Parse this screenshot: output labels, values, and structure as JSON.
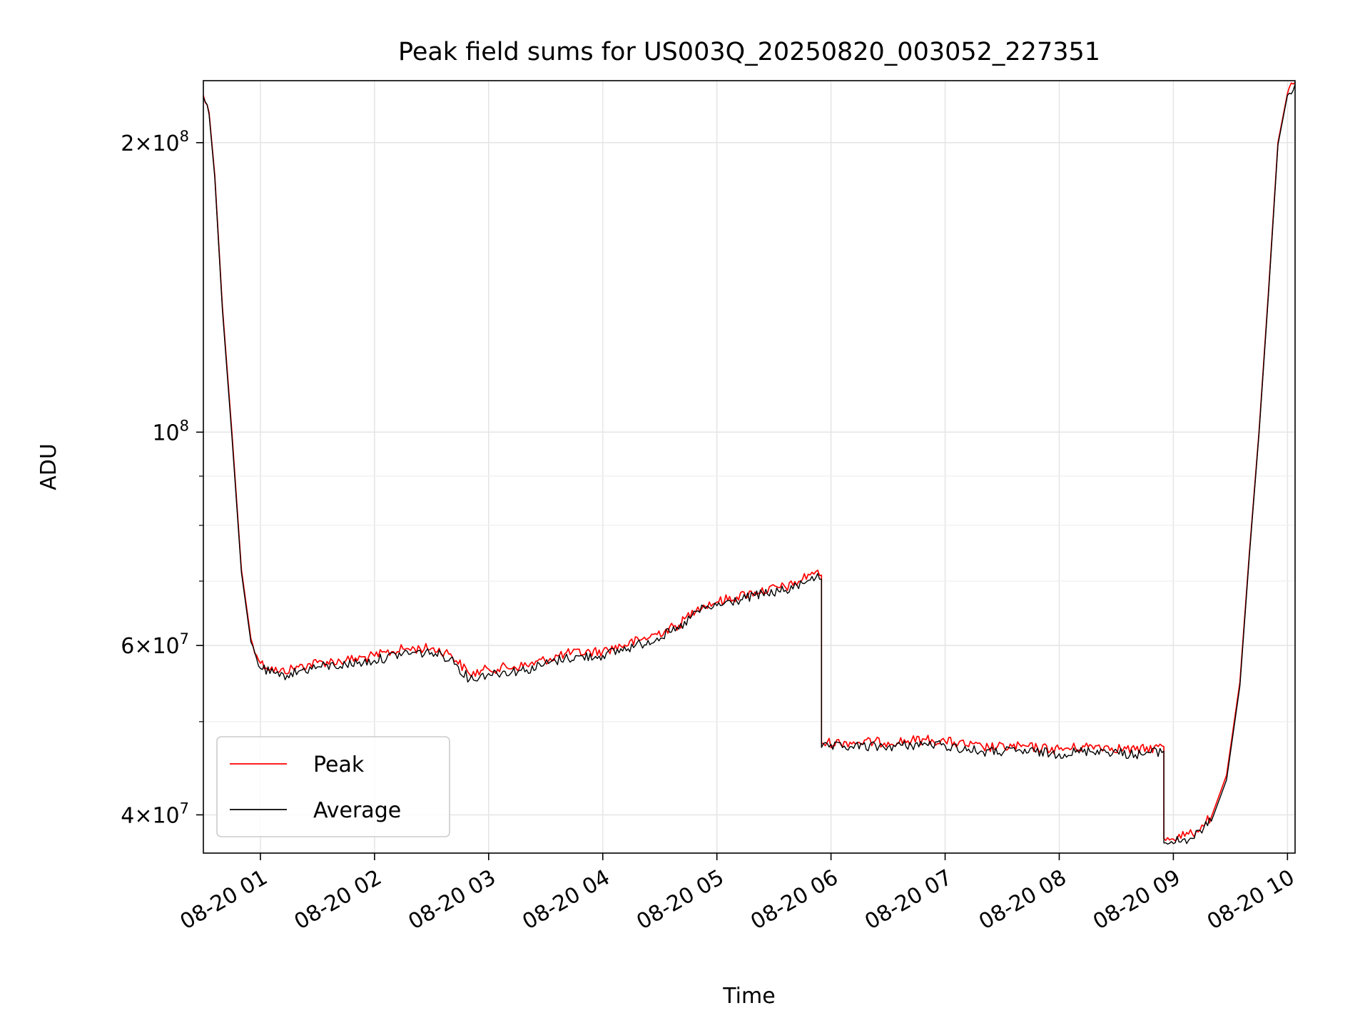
{
  "chart_data": {
    "type": "line",
    "title": "Peak field sums for US003Q_20250820_003052_227351",
    "xlabel": "Time",
    "ylabel": "ADU",
    "x_axis": "time",
    "y_scale": "log",
    "xlim": [
      "2025-08-20 00:30",
      "2025-08-20 10:04"
    ],
    "ylim": [
      36500000,
      232000000
    ],
    "grid": true,
    "legend_position": "lower-left",
    "x_ticks": [
      {
        "t": "2025-08-20 01:00",
        "label": "08-20 01"
      },
      {
        "t": "2025-08-20 02:00",
        "label": "08-20 02"
      },
      {
        "t": "2025-08-20 03:00",
        "label": "08-20 03"
      },
      {
        "t": "2025-08-20 04:00",
        "label": "08-20 04"
      },
      {
        "t": "2025-08-20 05:00",
        "label": "08-20 05"
      },
      {
        "t": "2025-08-20 06:00",
        "label": "08-20 06"
      },
      {
        "t": "2025-08-20 07:00",
        "label": "08-20 07"
      },
      {
        "t": "2025-08-20 08:00",
        "label": "08-20 08"
      },
      {
        "t": "2025-08-20 09:00",
        "label": "08-20 09"
      },
      {
        "t": "2025-08-20 10:00",
        "label": "08-20 10"
      }
    ],
    "y_ticks": [
      {
        "value": 40000000,
        "mant": "4",
        "exp": "7"
      },
      {
        "value": 60000000,
        "mant": "6",
        "exp": "7"
      },
      {
        "value": 100000000,
        "mant": "",
        "exp": "8"
      },
      {
        "value": 200000000,
        "mant": "2",
        "exp": "8"
      }
    ],
    "y_minor_ticks": [
      50000000,
      70000000,
      80000000,
      90000000
    ],
    "series": [
      {
        "name": "Peak",
        "color": "#ff0000",
        "points": [
          [
            "2025-08-20 00:30",
            224000000
          ],
          [
            "2025-08-20 00:33",
            215000000
          ],
          [
            "2025-08-20 00:36",
            185000000
          ],
          [
            "2025-08-20 00:40",
            135000000
          ],
          [
            "2025-08-20 00:45",
            100000000
          ],
          [
            "2025-08-20 00:50",
            72000000
          ],
          [
            "2025-08-20 00:55",
            61000000
          ],
          [
            "2025-08-20 01:00",
            57500000
          ],
          [
            "2025-08-20 01:10",
            56300000
          ],
          [
            "2025-08-20 01:20",
            57000000
          ],
          [
            "2025-08-20 01:30",
            57600000
          ],
          [
            "2025-08-20 01:45",
            57900000
          ],
          [
            "2025-08-20 02:00",
            58500000
          ],
          [
            "2025-08-20 02:15",
            59500000
          ],
          [
            "2025-08-20 02:30",
            59600000
          ],
          [
            "2025-08-20 02:40",
            58800000
          ],
          [
            "2025-08-20 02:50",
            56000000
          ],
          [
            "2025-08-20 03:00",
            56700000
          ],
          [
            "2025-08-20 03:20",
            57200000
          ],
          [
            "2025-08-20 03:40",
            58800000
          ],
          [
            "2025-08-20 04:00",
            59200000
          ],
          [
            "2025-08-20 04:20",
            60800000
          ],
          [
            "2025-08-20 04:40",
            63000000
          ],
          [
            "2025-08-20 04:50",
            65800000
          ],
          [
            "2025-08-20 05:00",
            66600000
          ],
          [
            "2025-08-20 05:20",
            68200000
          ],
          [
            "2025-08-20 05:40",
            69300000
          ],
          [
            "2025-08-20 05:50",
            71500000
          ],
          [
            "2025-08-20 05:55",
            71000000
          ],
          [
            "2025-08-20 05:55",
            47500000
          ],
          [
            "2025-08-20 06:10",
            47600000
          ],
          [
            "2025-08-20 06:30",
            47600000
          ],
          [
            "2025-08-20 06:50",
            47900000
          ],
          [
            "2025-08-20 07:00",
            47700000
          ],
          [
            "2025-08-20 07:20",
            47000000
          ],
          [
            "2025-08-20 07:40",
            47100000
          ],
          [
            "2025-08-20 08:00",
            46800000
          ],
          [
            "2025-08-20 08:20",
            47200000
          ],
          [
            "2025-08-20 08:40",
            46700000
          ],
          [
            "2025-08-20 08:55",
            47100000
          ],
          [
            "2025-08-20 08:55",
            37800000
          ],
          [
            "2025-08-20 09:10",
            38200000
          ],
          [
            "2025-08-20 09:20",
            39800000
          ],
          [
            "2025-08-20 09:28",
            44000000
          ],
          [
            "2025-08-20 09:35",
            55000000
          ],
          [
            "2025-08-20 09:40",
            75000000
          ],
          [
            "2025-08-20 09:45",
            100000000
          ],
          [
            "2025-08-20 09:50",
            140000000
          ],
          [
            "2025-08-20 09:55",
            200000000
          ],
          [
            "2025-08-20 10:00",
            225000000
          ],
          [
            "2025-08-20 10:04",
            231000000
          ]
        ]
      },
      {
        "name": "Average",
        "color": "#000000",
        "points": [
          [
            "2025-08-20 00:30",
            223000000
          ],
          [
            "2025-08-20 00:33",
            214000000
          ],
          [
            "2025-08-20 00:36",
            184000000
          ],
          [
            "2025-08-20 00:40",
            134000000
          ],
          [
            "2025-08-20 00:45",
            99000000
          ],
          [
            "2025-08-20 00:50",
            71500000
          ],
          [
            "2025-08-20 00:55",
            60500000
          ],
          [
            "2025-08-20 01:00",
            56800000
          ],
          [
            "2025-08-20 01:10",
            55700000
          ],
          [
            "2025-08-20 01:20",
            56400000
          ],
          [
            "2025-08-20 01:30",
            57000000
          ],
          [
            "2025-08-20 01:45",
            57300000
          ],
          [
            "2025-08-20 02:00",
            57900000
          ],
          [
            "2025-08-20 02:15",
            58900000
          ],
          [
            "2025-08-20 02:30",
            59000000
          ],
          [
            "2025-08-20 02:40",
            58200000
          ],
          [
            "2025-08-20 02:50",
            55300000
          ],
          [
            "2025-08-20 03:00",
            56100000
          ],
          [
            "2025-08-20 03:20",
            56600000
          ],
          [
            "2025-08-20 03:40",
            58200000
          ],
          [
            "2025-08-20 04:00",
            58600000
          ],
          [
            "2025-08-20 04:20",
            60200000
          ],
          [
            "2025-08-20 04:40",
            62400000
          ],
          [
            "2025-08-20 04:50",
            65200000
          ],
          [
            "2025-08-20 05:00",
            66000000
          ],
          [
            "2025-08-20 05:20",
            67600000
          ],
          [
            "2025-08-20 05:40",
            68700000
          ],
          [
            "2025-08-20 05:50",
            70800000
          ],
          [
            "2025-08-20 05:55",
            70300000
          ],
          [
            "2025-08-20 05:55",
            47000000
          ],
          [
            "2025-08-20 06:10",
            47100000
          ],
          [
            "2025-08-20 06:30",
            47100000
          ],
          [
            "2025-08-20 06:50",
            47400000
          ],
          [
            "2025-08-20 07:00",
            47200000
          ],
          [
            "2025-08-20 07:20",
            46500000
          ],
          [
            "2025-08-20 07:40",
            46600000
          ],
          [
            "2025-08-20 08:00",
            46300000
          ],
          [
            "2025-08-20 08:20",
            46700000
          ],
          [
            "2025-08-20 08:40",
            46200000
          ],
          [
            "2025-08-20 08:55",
            46600000
          ],
          [
            "2025-08-20 08:55",
            37400000
          ],
          [
            "2025-08-20 09:10",
            37800000
          ],
          [
            "2025-08-20 09:20",
            39400000
          ],
          [
            "2025-08-20 09:28",
            43500000
          ],
          [
            "2025-08-20 09:35",
            54500000
          ],
          [
            "2025-08-20 09:40",
            74500000
          ],
          [
            "2025-08-20 09:45",
            99500000
          ],
          [
            "2025-08-20 09:50",
            139000000
          ],
          [
            "2025-08-20 09:55",
            199000000
          ],
          [
            "2025-08-20 10:00",
            224000000
          ],
          [
            "2025-08-20 10:04",
            230000000
          ]
        ]
      }
    ]
  }
}
